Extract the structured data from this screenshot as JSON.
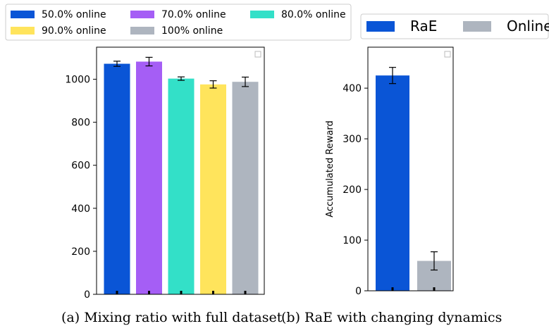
{
  "chart_data": [
    {
      "type": "bar",
      "title": "",
      "xlabel": "",
      "ylabel": "",
      "ylim": [
        0,
        1100
      ],
      "yticks": [
        0,
        200,
        400,
        600,
        800,
        1000
      ],
      "legend_position": "top",
      "series": [
        {
          "name": "50.0% online",
          "value": 1072,
          "error": 12,
          "color": "#0a55d6"
        },
        {
          "name": "70.0% online",
          "value": 1082,
          "error": 20,
          "color": "#a55ef5"
        },
        {
          "name": "80.0% online",
          "value": 1003,
          "error": 8,
          "color": "#33e0c8"
        },
        {
          "name": "90.0% online",
          "value": 976,
          "error": 17,
          "color": "#ffe45c"
        },
        {
          "name": "100% online",
          "value": 988,
          "error": 22,
          "color": "#aeb5bf"
        }
      ],
      "caption": "(a) Mixing ratio with full dataset"
    },
    {
      "type": "bar",
      "title": "",
      "xlabel": "",
      "ylabel": "Accumulated Reward",
      "ylim": [
        0,
        460
      ],
      "yticks": [
        0,
        100,
        200,
        300,
        400
      ],
      "legend_position": "top",
      "series": [
        {
          "name": "RaE",
          "value": 425,
          "error": 16,
          "color": "#0a55d6"
        },
        {
          "name": "Online",
          "value": 59,
          "error": 18,
          "color": "#aeb5bf"
        }
      ],
      "caption": "(b) RaE with changing dynamics"
    }
  ]
}
